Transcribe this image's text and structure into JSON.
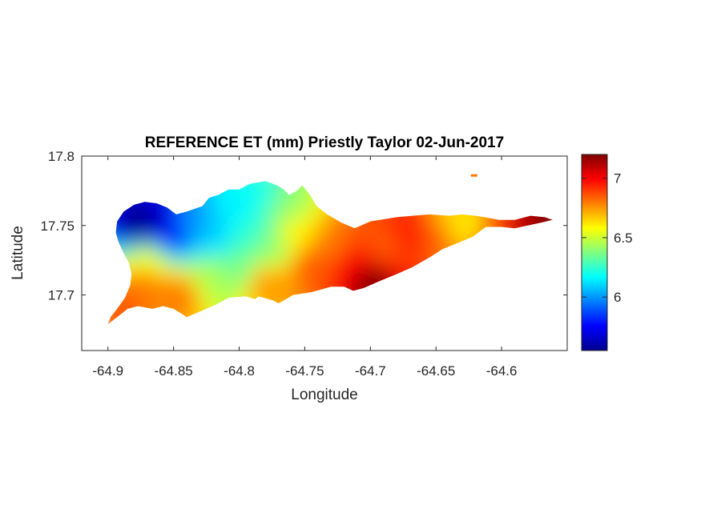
{
  "chart_data": {
    "type": "heatmap",
    "title": "REFERENCE ET (mm) Priestly Taylor 02-Jun-2017",
    "xlabel": "Longitude",
    "ylabel": "Latitude",
    "xlim": [
      -64.92,
      -64.55
    ],
    "ylim": [
      17.66,
      17.8
    ],
    "x_ticks": [
      -64.9,
      -64.85,
      -64.8,
      -64.75,
      -64.7,
      -64.65,
      -64.6
    ],
    "x_tick_labels": [
      "-64.9",
      "-64.85",
      "-64.8",
      "-64.75",
      "-64.7",
      "-64.65",
      "-64.6"
    ],
    "y_ticks": [
      17.7,
      17.75,
      17.8
    ],
    "y_tick_labels": [
      "17.7",
      "17.75",
      "17.8"
    ],
    "colorbar": {
      "colormap": "jet",
      "clim": [
        5.55,
        7.2
      ],
      "ticks": [
        6,
        6.5,
        7
      ],
      "tick_labels": [
        "6",
        "6.5",
        "7"
      ]
    },
    "grid": false,
    "island_outline": [
      [
        -64.9,
        17.679
      ],
      [
        -64.893,
        17.684
      ],
      [
        -64.885,
        17.69
      ],
      [
        -64.877,
        17.692
      ],
      [
        -64.866,
        17.69
      ],
      [
        -64.858,
        17.692
      ],
      [
        -64.85,
        17.69
      ],
      [
        -64.843,
        17.686
      ],
      [
        -64.84,
        17.684
      ],
      [
        -64.83,
        17.688
      ],
      [
        -64.818,
        17.693
      ],
      [
        -64.808,
        17.698
      ],
      [
        -64.795,
        17.699
      ],
      [
        -64.788,
        17.697
      ],
      [
        -64.785,
        17.699
      ],
      [
        -64.774,
        17.696
      ],
      [
        -64.77,
        17.694
      ],
      [
        -64.766,
        17.696
      ],
      [
        -64.759,
        17.7
      ],
      [
        -64.745,
        17.702
      ],
      [
        -64.73,
        17.706
      ],
      [
        -64.72,
        17.706
      ],
      [
        -64.713,
        17.703
      ],
      [
        -64.705,
        17.705
      ],
      [
        -64.693,
        17.71
      ],
      [
        -64.68,
        17.715
      ],
      [
        -64.668,
        17.72
      ],
      [
        -64.655,
        17.727
      ],
      [
        -64.645,
        17.733
      ],
      [
        -64.632,
        17.738
      ],
      [
        -64.622,
        17.742
      ],
      [
        -64.612,
        17.749
      ],
      [
        -64.6,
        17.749
      ],
      [
        -64.59,
        17.748
      ],
      [
        -64.58,
        17.75
      ],
      [
        -64.57,
        17.752
      ],
      [
        -64.561,
        17.754
      ],
      [
        -64.567,
        17.756
      ],
      [
        -64.578,
        17.757
      ],
      [
        -64.59,
        17.754
      ],
      [
        -64.602,
        17.754
      ],
      [
        -64.613,
        17.756
      ],
      [
        -64.62,
        17.757
      ],
      [
        -64.63,
        17.758
      ],
      [
        -64.64,
        17.757
      ],
      [
        -64.655,
        17.758
      ],
      [
        -64.668,
        17.757
      ],
      [
        -64.68,
        17.756
      ],
      [
        -64.7,
        17.753
      ],
      [
        -64.712,
        17.748
      ],
      [
        -64.722,
        17.752
      ],
      [
        -64.733,
        17.758
      ],
      [
        -64.741,
        17.764
      ],
      [
        -64.746,
        17.772
      ],
      [
        -64.752,
        17.779
      ],
      [
        -64.756,
        17.775
      ],
      [
        -64.762,
        17.772
      ],
      [
        -64.766,
        17.776
      ],
      [
        -64.771,
        17.779
      ],
      [
        -64.78,
        17.782
      ],
      [
        -64.792,
        17.78
      ],
      [
        -64.8,
        17.776
      ],
      [
        -64.808,
        17.776
      ],
      [
        -64.816,
        17.772
      ],
      [
        -64.823,
        17.77
      ],
      [
        -64.828,
        17.764
      ],
      [
        -64.84,
        17.76
      ],
      [
        -64.848,
        17.758
      ],
      [
        -64.855,
        17.763
      ],
      [
        -64.863,
        17.766
      ],
      [
        -64.872,
        17.767
      ],
      [
        -64.88,
        17.765
      ],
      [
        -64.888,
        17.76
      ],
      [
        -64.893,
        17.753
      ],
      [
        -64.894,
        17.745
      ],
      [
        -64.892,
        17.738
      ],
      [
        -64.888,
        17.73
      ],
      [
        -64.884,
        17.723
      ],
      [
        -64.882,
        17.715
      ],
      [
        -64.883,
        17.707
      ],
      [
        -64.887,
        17.698
      ],
      [
        -64.893,
        17.69
      ],
      [
        -64.898,
        17.684
      ]
    ],
    "islet": [
      -64.621,
      17.786
    ],
    "value_field": [
      {
        "lon": -64.875,
        "lat": 17.749,
        "value": 5.55
      },
      {
        "lon": -64.862,
        "lat": 17.752,
        "value": 5.65
      },
      {
        "lon": -64.852,
        "lat": 17.744,
        "value": 5.8
      },
      {
        "lon": -64.835,
        "lat": 17.752,
        "value": 6.0
      },
      {
        "lon": -64.818,
        "lat": 17.742,
        "value": 6.1
      },
      {
        "lon": -64.8,
        "lat": 17.762,
        "value": 6.15
      },
      {
        "lon": -64.785,
        "lat": 17.77,
        "value": 6.2
      },
      {
        "lon": -64.79,
        "lat": 17.745,
        "value": 6.25
      },
      {
        "lon": -64.87,
        "lat": 17.725,
        "value": 6.55
      },
      {
        "lon": -64.872,
        "lat": 17.708,
        "value": 6.8
      },
      {
        "lon": -64.888,
        "lat": 17.692,
        "value": 6.85
      },
      {
        "lon": -64.845,
        "lat": 17.7,
        "value": 6.8
      },
      {
        "lon": -64.822,
        "lat": 17.712,
        "value": 6.45
      },
      {
        "lon": -64.8,
        "lat": 17.72,
        "value": 6.35
      },
      {
        "lon": -64.775,
        "lat": 17.735,
        "value": 6.4
      },
      {
        "lon": -64.765,
        "lat": 17.762,
        "value": 6.4
      },
      {
        "lon": -64.757,
        "lat": 17.745,
        "value": 6.6
      },
      {
        "lon": -64.78,
        "lat": 17.708,
        "value": 6.75
      },
      {
        "lon": -64.745,
        "lat": 17.72,
        "value": 6.85
      },
      {
        "lon": -64.73,
        "lat": 17.735,
        "value": 6.8
      },
      {
        "lon": -64.715,
        "lat": 17.72,
        "value": 7.0
      },
      {
        "lon": -64.7,
        "lat": 17.71,
        "value": 7.2
      },
      {
        "lon": -64.69,
        "lat": 17.735,
        "value": 6.85
      },
      {
        "lon": -64.67,
        "lat": 17.745,
        "value": 6.95
      },
      {
        "lon": -64.65,
        "lat": 17.745,
        "value": 6.85
      },
      {
        "lon": -64.64,
        "lat": 17.752,
        "value": 6.65
      },
      {
        "lon": -64.625,
        "lat": 17.752,
        "value": 6.6
      },
      {
        "lon": -64.605,
        "lat": 17.75,
        "value": 6.85
      },
      {
        "lon": -64.585,
        "lat": 17.752,
        "value": 7.1
      },
      {
        "lon": -64.565,
        "lat": 17.755,
        "value": 7.2
      },
      {
        "lon": -64.621,
        "lat": 17.786,
        "value": 6.8
      }
    ]
  }
}
